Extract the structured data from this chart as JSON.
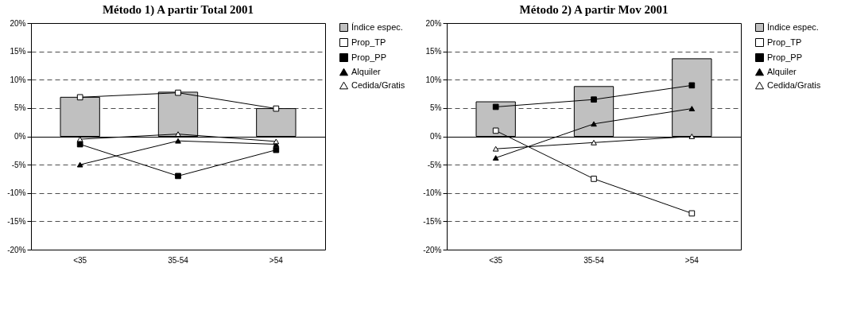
{
  "chart_data": [
    {
      "type": "bar",
      "title": "Método 1) A partir Total 2001",
      "categories": [
        "<35",
        "35-54",
        ">54"
      ],
      "ylim": [
        -20,
        20
      ],
      "yticks": [
        {
          "value": -20,
          "label": "-20%"
        },
        {
          "value": -15,
          "label": "-15%"
        },
        {
          "value": -10,
          "label": "-10%"
        },
        {
          "value": -5,
          "label": "-5%"
        },
        {
          "value": 0,
          "label": "0%"
        },
        {
          "value": 5,
          "label": "5%"
        },
        {
          "value": 10,
          "label": "10%"
        },
        {
          "value": 15,
          "label": "15%"
        },
        {
          "value": 20,
          "label": "20%"
        }
      ],
      "grid": "y",
      "legend": "right",
      "line_style": "solid",
      "series": [
        {
          "name": "Índice espec.",
          "color": "#c0c0c0",
          "values": [
            6.9,
            7.8,
            4.9
          ]
        },
        {
          "name": "Prop_TP",
          "type": "line",
          "marker": "square",
          "color": "#ffffff",
          "values": [
            6.9,
            7.7,
            4.9
          ]
        },
        {
          "name": "Prop_PP",
          "type": "line",
          "marker": "square",
          "color": "#000000",
          "values": [
            -1.4,
            -7.0,
            -2.4
          ]
        },
        {
          "name": "Alquiler",
          "type": "line",
          "marker": "triangle",
          "color": "#000000",
          "values": [
            -5.0,
            -0.8,
            -1.4
          ]
        },
        {
          "name": "Cedida/Gratis",
          "type": "line",
          "marker": "triangle",
          "color": "#ffffff",
          "values": [
            -0.5,
            0.4,
            -0.9
          ]
        }
      ]
    },
    {
      "type": "bar",
      "title": "Método 2) A partir Mov 2001",
      "categories": [
        "<35",
        "35-54",
        ">54"
      ],
      "ylim": [
        -20,
        20
      ],
      "yticks": [
        {
          "value": -20,
          "label": "-20%"
        },
        {
          "value": -15,
          "label": "-15%"
        },
        {
          "value": -10,
          "label": "-10%"
        },
        {
          "value": -5,
          "label": "-5%"
        },
        {
          "value": 0,
          "label": "0%"
        },
        {
          "value": 5,
          "label": "5%"
        },
        {
          "value": 10,
          "label": "10%"
        },
        {
          "value": 15,
          "label": "15%"
        },
        {
          "value": 20,
          "label": "20%"
        }
      ],
      "grid": "y",
      "legend": "right",
      "line_style": "solid",
      "series": [
        {
          "name": "Índice espec.",
          "color": "#c0c0c0",
          "values": [
            6.1,
            8.8,
            13.7
          ]
        },
        {
          "name": "Prop_TP",
          "type": "line",
          "marker": "square",
          "color": "#ffffff",
          "values": [
            1.0,
            -7.5,
            -13.6
          ]
        },
        {
          "name": "Prop_PP",
          "type": "line",
          "marker": "square",
          "color": "#000000",
          "values": [
            5.2,
            6.5,
            9.0
          ]
        },
        {
          "name": "Alquiler",
          "type": "line",
          "marker": "triangle",
          "color": "#000000",
          "values": [
            -3.8,
            2.2,
            4.9
          ]
        },
        {
          "name": "Cedida/Gratis",
          "type": "line",
          "marker": "triangle",
          "color": "#ffffff",
          "values": [
            -2.2,
            -1.1,
            0.0
          ]
        }
      ]
    }
  ]
}
